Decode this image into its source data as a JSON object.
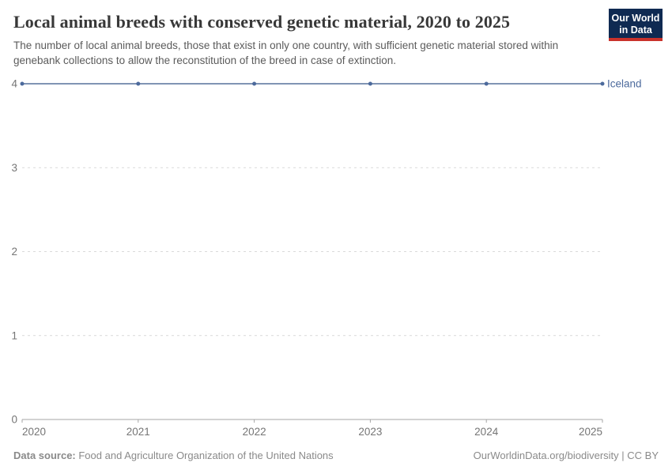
{
  "chart_data": {
    "type": "line",
    "title": "Local animal breeds with conserved genetic material, 2020 to 2025",
    "subtitle": "The number of local animal breeds, those that exist in only one country, with sufficient genetic material stored within genebank collections to allow the reconstitution of the breed in case of extinction.",
    "x": [
      2020,
      2021,
      2022,
      2023,
      2024,
      2025
    ],
    "xticks": [
      2020,
      2021,
      2022,
      2023,
      2024,
      2025
    ],
    "yticks": [
      0,
      1,
      2,
      3,
      4
    ],
    "ylim": [
      0,
      4
    ],
    "grid": true,
    "legend_position": "end-of-line-label",
    "series": [
      {
        "name": "Iceland",
        "values": [
          4,
          4,
          4,
          4,
          4,
          4
        ],
        "color": "#4C6A9C",
        "line_color": "#8094B4"
      }
    ]
  },
  "logo": {
    "line1": "Our World",
    "line2": "in Data",
    "bg_color": "#0f2a52",
    "bar_color": "#c9322b"
  },
  "footer": {
    "source_label": "Data source:",
    "source_text": " Food and Agriculture Organization of the United Nations",
    "right_text": "OurWorldinData.org/biodiversity | CC BY"
  }
}
